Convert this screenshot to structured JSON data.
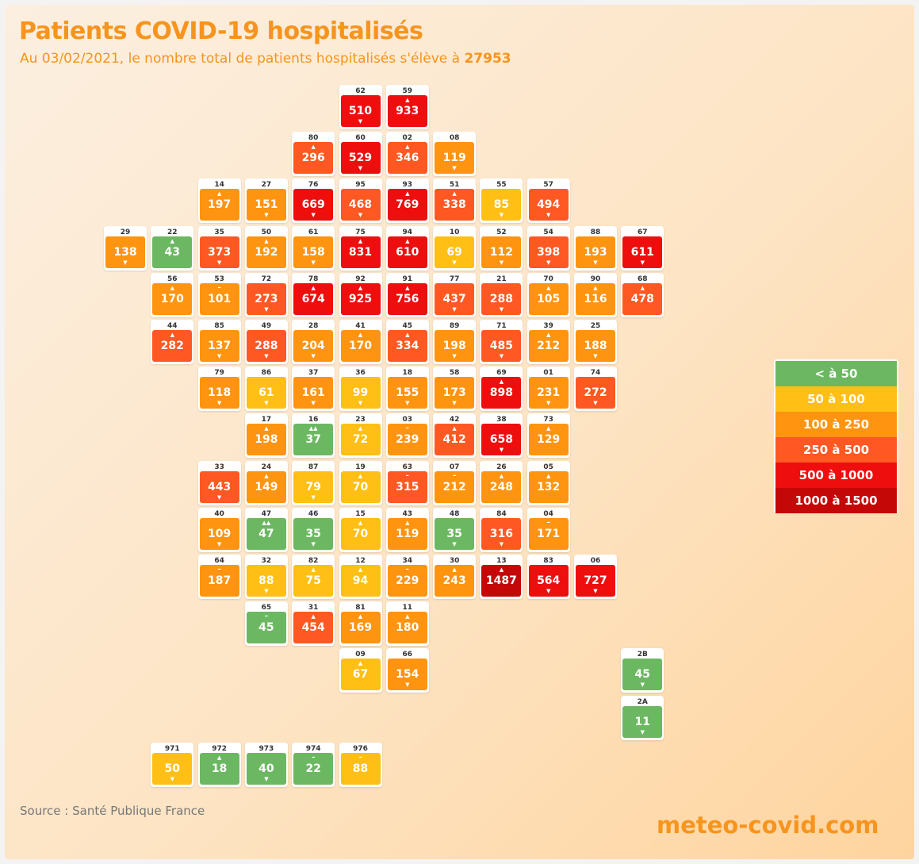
{
  "title": "Patients COVID-19 hospitalisés",
  "subtitle_prefix": "Au 03/02/2021, le nombre total de patients hospitalisés s'élève à",
  "subtitle_total": "27953",
  "source": "Source : Santé Publique France",
  "brand": "meteo-covid.com",
  "colors": {
    "lt50": "#6cb862",
    "50_100": "#ffbf14",
    "100_250": "#ff9410",
    "250_500": "#ff5823",
    "500_1000": "#ee0e0e",
    "1000_1500": "#c40707"
  },
  "legend": [
    {
      "label": "< à 50",
      "color": "#6cb862"
    },
    {
      "label": "50 à 100",
      "color": "#ffbf14"
    },
    {
      "label": "100 à 250",
      "color": "#ff9410"
    },
    {
      "label": "250 à 500",
      "color": "#ff5823"
    },
    {
      "label": "500 à 1000",
      "color": "#ee0e0e"
    },
    {
      "label": "1000 à 1500",
      "color": "#c40707"
    }
  ],
  "departments": [
    {
      "code": "62",
      "row": 0,
      "col": 5,
      "value": 510,
      "trend": "down"
    },
    {
      "code": "59",
      "row": 0,
      "col": 6,
      "value": 933,
      "trend": "up"
    },
    {
      "code": "80",
      "row": 1,
      "col": 4,
      "value": 296,
      "trend": "up"
    },
    {
      "code": "60",
      "row": 1,
      "col": 5,
      "value": 529,
      "trend": "down"
    },
    {
      "code": "02",
      "row": 1,
      "col": 6,
      "value": 346,
      "trend": "up"
    },
    {
      "code": "08",
      "row": 1,
      "col": 7,
      "value": 119,
      "trend": "down"
    },
    {
      "code": "14",
      "row": 2,
      "col": 2,
      "value": 197,
      "trend": "up"
    },
    {
      "code": "27",
      "row": 2,
      "col": 3,
      "value": 151,
      "trend": "down"
    },
    {
      "code": "76",
      "row": 2,
      "col": 4,
      "value": 669,
      "trend": "down"
    },
    {
      "code": "95",
      "row": 2,
      "col": 5,
      "value": 468,
      "trend": "down"
    },
    {
      "code": "93",
      "row": 2,
      "col": 6,
      "value": 769,
      "trend": "up"
    },
    {
      "code": "51",
      "row": 2,
      "col": 7,
      "value": 338,
      "trend": "up"
    },
    {
      "code": "55",
      "row": 2,
      "col": 8,
      "value": 85,
      "trend": "down"
    },
    {
      "code": "57",
      "row": 2,
      "col": 9,
      "value": 494,
      "trend": "down"
    },
    {
      "code": "29",
      "row": 3,
      "col": 0,
      "value": 138,
      "trend": "down"
    },
    {
      "code": "22",
      "row": 3,
      "col": 1,
      "value": 43,
      "trend": "up"
    },
    {
      "code": "35",
      "row": 3,
      "col": 2,
      "value": 373,
      "trend": "down"
    },
    {
      "code": "50",
      "row": 3,
      "col": 3,
      "value": 192,
      "trend": "up"
    },
    {
      "code": "61",
      "row": 3,
      "col": 4,
      "value": 158,
      "trend": "down"
    },
    {
      "code": "75",
      "row": 3,
      "col": 5,
      "value": 831,
      "trend": "up"
    },
    {
      "code": "94",
      "row": 3,
      "col": 6,
      "value": 610,
      "trend": "up"
    },
    {
      "code": "10",
      "row": 3,
      "col": 7,
      "value": 69,
      "trend": "down"
    },
    {
      "code": "52",
      "row": 3,
      "col": 8,
      "value": 112,
      "trend": "down"
    },
    {
      "code": "54",
      "row": 3,
      "col": 9,
      "value": 398,
      "trend": "down"
    },
    {
      "code": "88",
      "row": 3,
      "col": 10,
      "value": 193,
      "trend": "down"
    },
    {
      "code": "67",
      "row": 3,
      "col": 11,
      "value": 611,
      "trend": "down"
    },
    {
      "code": "56",
      "row": 4,
      "col": 1,
      "value": 170,
      "trend": "up"
    },
    {
      "code": "53",
      "row": 4,
      "col": 2,
      "value": 101,
      "trend": "flat"
    },
    {
      "code": "72",
      "row": 4,
      "col": 3,
      "value": 273,
      "trend": "down"
    },
    {
      "code": "78",
      "row": 4,
      "col": 4,
      "value": 674,
      "trend": "up"
    },
    {
      "code": "92",
      "row": 4,
      "col": 5,
      "value": 925,
      "trend": "up"
    },
    {
      "code": "91",
      "row": 4,
      "col": 6,
      "value": 756,
      "trend": "up"
    },
    {
      "code": "77",
      "row": 4,
      "col": 7,
      "value": 437,
      "trend": "down"
    },
    {
      "code": "21",
      "row": 4,
      "col": 8,
      "value": 288,
      "trend": "down"
    },
    {
      "code": "70",
      "row": 4,
      "col": 9,
      "value": 105,
      "trend": "up"
    },
    {
      "code": "90",
      "row": 4,
      "col": 10,
      "value": 116,
      "trend": "up"
    },
    {
      "code": "68",
      "row": 4,
      "col": 11,
      "value": 478,
      "trend": "up"
    },
    {
      "code": "44",
      "row": 5,
      "col": 1,
      "value": 282,
      "trend": "up"
    },
    {
      "code": "85",
      "row": 5,
      "col": 2,
      "value": 137,
      "trend": "down"
    },
    {
      "code": "49",
      "row": 5,
      "col": 3,
      "value": 288,
      "trend": "down"
    },
    {
      "code": "28",
      "row": 5,
      "col": 4,
      "value": 204,
      "trend": "down"
    },
    {
      "code": "41",
      "row": 5,
      "col": 5,
      "value": 170,
      "trend": "up"
    },
    {
      "code": "45",
      "row": 5,
      "col": 6,
      "value": 334,
      "trend": "up"
    },
    {
      "code": "89",
      "row": 5,
      "col": 7,
      "value": 198,
      "trend": "down"
    },
    {
      "code": "71",
      "row": 5,
      "col": 8,
      "value": 485,
      "trend": "down"
    },
    {
      "code": "39",
      "row": 5,
      "col": 9,
      "value": 212,
      "trend": "up"
    },
    {
      "code": "25",
      "row": 5,
      "col": 10,
      "value": 188,
      "trend": "down"
    },
    {
      "code": "79",
      "row": 6,
      "col": 2,
      "value": 118,
      "trend": "down"
    },
    {
      "code": "86",
      "row": 6,
      "col": 3,
      "value": 61,
      "trend": "down"
    },
    {
      "code": "37",
      "row": 6,
      "col": 4,
      "value": 161,
      "trend": "down"
    },
    {
      "code": "36",
      "row": 6,
      "col": 5,
      "value": 99,
      "trend": "down"
    },
    {
      "code": "18",
      "row": 6,
      "col": 6,
      "value": 155,
      "trend": "down"
    },
    {
      "code": "58",
      "row": 6,
      "col": 7,
      "value": 173,
      "trend": "down"
    },
    {
      "code": "69",
      "row": 6,
      "col": 8,
      "value": 898,
      "trend": "up"
    },
    {
      "code": "01",
      "row": 6,
      "col": 9,
      "value": 231,
      "trend": "down"
    },
    {
      "code": "74",
      "row": 6,
      "col": 10,
      "value": 272,
      "trend": "down"
    },
    {
      "code": "17",
      "row": 7,
      "col": 3,
      "value": 198,
      "trend": "up"
    },
    {
      "code": "16",
      "row": 7,
      "col": 4,
      "value": 37,
      "trend": "upup"
    },
    {
      "code": "23",
      "row": 7,
      "col": 5,
      "value": 72,
      "trend": "up"
    },
    {
      "code": "03",
      "row": 7,
      "col": 6,
      "value": 239,
      "trend": "flat"
    },
    {
      "code": "42",
      "row": 7,
      "col": 7,
      "value": 412,
      "trend": "up"
    },
    {
      "code": "38",
      "row": 7,
      "col": 8,
      "value": 658,
      "trend": "down"
    },
    {
      "code": "73",
      "row": 7,
      "col": 9,
      "value": 129,
      "trend": "up"
    },
    {
      "code": "33",
      "row": 8,
      "col": 2,
      "value": 443,
      "trend": "down"
    },
    {
      "code": "24",
      "row": 8,
      "col": 3,
      "value": 149,
      "trend": "up"
    },
    {
      "code": "87",
      "row": 8,
      "col": 4,
      "value": 79,
      "trend": "down"
    },
    {
      "code": "19",
      "row": 8,
      "col": 5,
      "value": 70,
      "trend": "up"
    },
    {
      "code": "63",
      "row": 8,
      "col": 6,
      "value": 315,
      "trend": "flat"
    },
    {
      "code": "07",
      "row": 8,
      "col": 7,
      "value": 212,
      "trend": "flat"
    },
    {
      "code": "26",
      "row": 8,
      "col": 8,
      "value": 248,
      "trend": "up"
    },
    {
      "code": "05",
      "row": 8,
      "col": 9,
      "value": 132,
      "trend": "up"
    },
    {
      "code": "40",
      "row": 9,
      "col": 2,
      "value": 109,
      "trend": "down"
    },
    {
      "code": "47",
      "row": 9,
      "col": 3,
      "value": 47,
      "trend": "upup"
    },
    {
      "code": "46",
      "row": 9,
      "col": 4,
      "value": 35,
      "trend": "down"
    },
    {
      "code": "15",
      "row": 9,
      "col": 5,
      "value": 70,
      "trend": "up"
    },
    {
      "code": "43",
      "row": 9,
      "col": 6,
      "value": 119,
      "trend": "up"
    },
    {
      "code": "48",
      "row": 9,
      "col": 7,
      "value": 35,
      "trend": "down"
    },
    {
      "code": "84",
      "row": 9,
      "col": 8,
      "value": 316,
      "trend": "down"
    },
    {
      "code": "04",
      "row": 9,
      "col": 9,
      "value": 171,
      "trend": "flat"
    },
    {
      "code": "64",
      "row": 10,
      "col": 2,
      "value": 187,
      "trend": "flat"
    },
    {
      "code": "32",
      "row": 10,
      "col": 3,
      "value": 88,
      "trend": "down"
    },
    {
      "code": "82",
      "row": 10,
      "col": 4,
      "value": 75,
      "trend": "up"
    },
    {
      "code": "12",
      "row": 10,
      "col": 5,
      "value": 94,
      "trend": "up"
    },
    {
      "code": "34",
      "row": 10,
      "col": 6,
      "value": 229,
      "trend": "flat"
    },
    {
      "code": "30",
      "row": 10,
      "col": 7,
      "value": 243,
      "trend": "up"
    },
    {
      "code": "13",
      "row": 10,
      "col": 8,
      "value": 1487,
      "trend": "up"
    },
    {
      "code": "83",
      "row": 10,
      "col": 9,
      "value": 564,
      "trend": "down"
    },
    {
      "code": "06",
      "row": 10,
      "col": 10,
      "value": 727,
      "trend": "down"
    },
    {
      "code": "65",
      "row": 11,
      "col": 3,
      "value": 45,
      "trend": "flat"
    },
    {
      "code": "31",
      "row": 11,
      "col": 4,
      "value": 454,
      "trend": "up"
    },
    {
      "code": "81",
      "row": 11,
      "col": 5,
      "value": 169,
      "trend": "up"
    },
    {
      "code": "11",
      "row": 11,
      "col": 6,
      "value": 180,
      "trend": "up"
    },
    {
      "code": "09",
      "row": 12,
      "col": 5,
      "value": 67,
      "trend": "up"
    },
    {
      "code": "66",
      "row": 12,
      "col": 6,
      "value": 154,
      "trend": "down"
    },
    {
      "code": "2B",
      "row": 12,
      "col": 11,
      "value": 45,
      "trend": "down"
    },
    {
      "code": "2A",
      "row": 13,
      "col": 11,
      "value": 11,
      "trend": "down"
    },
    {
      "code": "971",
      "row": 14,
      "col": 1,
      "value": 50,
      "trend": "down"
    },
    {
      "code": "972",
      "row": 14,
      "col": 2,
      "value": 18,
      "trend": "up"
    },
    {
      "code": "973",
      "row": 14,
      "col": 3,
      "value": 40,
      "trend": "down"
    },
    {
      "code": "974",
      "row": 14,
      "col": 4,
      "value": 22,
      "trend": "flat"
    },
    {
      "code": "976",
      "row": 14,
      "col": 5,
      "value": 88,
      "trend": "flat"
    }
  ]
}
